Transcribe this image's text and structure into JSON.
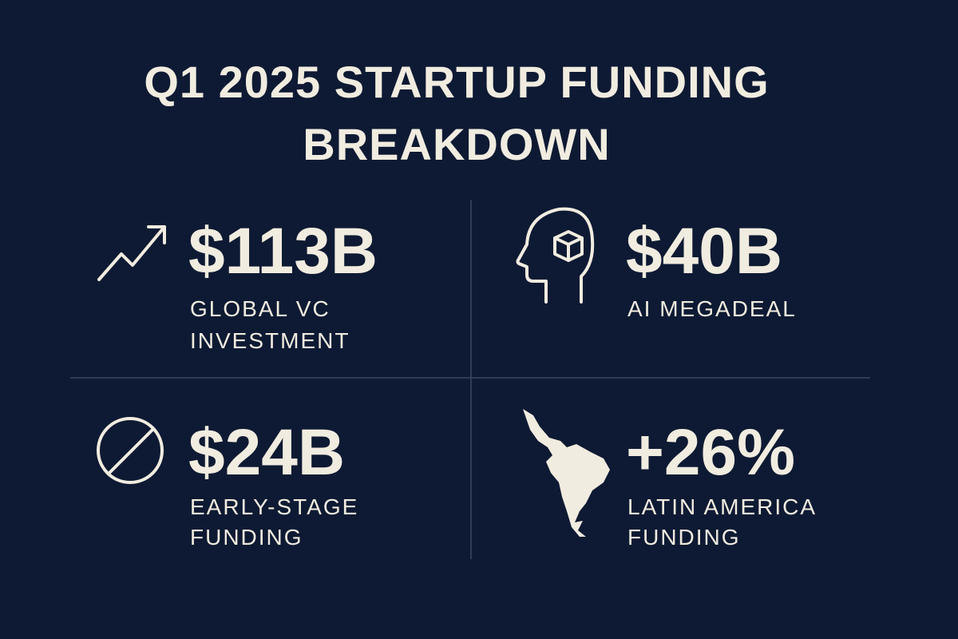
{
  "title": {
    "lines": [
      "Q1 2025 STARTUP FUNDING",
      "BREAKDOWN"
    ]
  },
  "stats": [
    {
      "value": "$113B",
      "label": [
        "GLOBAL VC",
        "INVESTMENT"
      ]
    },
    {
      "value": "$40B",
      "label": [
        "AI MEGADEAL"
      ]
    },
    {
      "value": "$24B",
      "label": [
        "EARLY-STAGE",
        "FUNDING"
      ]
    },
    {
      "value": "+26%",
      "label": [
        "LATIN AMERICA",
        "FUNDING"
      ]
    }
  ]
}
